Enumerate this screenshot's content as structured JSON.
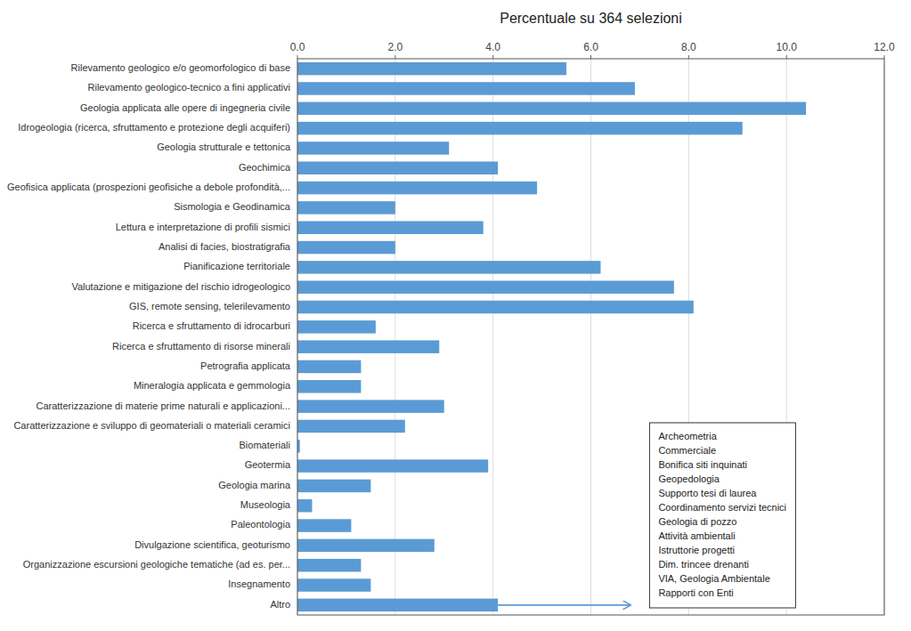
{
  "chart_data": {
    "type": "bar",
    "orientation": "horizontal",
    "title": "Percentuale su 364 selezioni",
    "categories": [
      "Rilevamento geologico e/o geomorfologico di base",
      "Rilevamento geologico-tecnico a fini applicativi",
      "Geologia applicata alle opere di ingegneria civile",
      "Idrogeologia (ricerca, sfruttamento e protezione degli acquiferi)",
      "Geologia strutturale e tettonica",
      "Geochimica",
      "Geofisica applicata (prospezioni geofisiche a debole profondità,...",
      "Sismologia e Geodinamica",
      "Lettura e interpretazione di profili sismici",
      "Analisi di facies, biostratigrafia",
      "Pianificazione territoriale",
      "Valutazione e mitigazione del rischio idrogeologico",
      "GIS, remote sensing, telerilevamento",
      "Ricerca e sfruttamento di idrocarburi",
      "Ricerca e sfruttamento di risorse minerali",
      "Petrografia applicata",
      "Mineralogia applicata e gemmologia",
      "Caratterizzazione di materie prime naturali e applicazioni...",
      "Caratterizzazione e sviluppo di geomateriali o materiali ceramici",
      "Biomateriali",
      "Geotermia",
      "Geologia marina",
      "Museologia",
      "Paleontologia",
      "Divulgazione scientifica, geoturismo",
      "Organizzazione escursioni geologiche tematiche (ad es. per...",
      "Insegnamento",
      "Altro"
    ],
    "values": [
      5.5,
      6.9,
      10.4,
      9.1,
      3.1,
      4.1,
      4.9,
      2.0,
      3.8,
      2.0,
      6.2,
      7.7,
      8.1,
      1.6,
      2.9,
      1.3,
      1.3,
      3.0,
      2.2,
      0.05,
      3.9,
      1.5,
      0.3,
      1.1,
      2.8,
      1.3,
      1.5,
      4.1
    ],
    "color": "#5B9BD5",
    "xlim": [
      0,
      12.0
    ],
    "xticks": [
      {
        "value": 0.0,
        "label": "0.0"
      },
      {
        "value": 2.0,
        "label": "2.0"
      },
      {
        "value": 4.0,
        "label": "4.0"
      },
      {
        "value": 6.0,
        "label": "6.0"
      },
      {
        "value": 8.0,
        "label": "8.0"
      },
      {
        "value": 10.0,
        "label": "10.0"
      },
      {
        "value": 12.0,
        "label": "12.0"
      }
    ],
    "grid": true,
    "annotations": [
      "Archeometria",
      "Commerciale",
      "Bonifica siti inquinati",
      "Geopedologia",
      "Supporto tesi di laurea",
      "Coordinamento servizi tecnici",
      "Geologia di pozzo",
      "Attività ambientali",
      "Istruttorie progetti",
      "Dim. trincee drenanti",
      "VIA, Geologia Ambientale",
      "Rapporti con Enti"
    ],
    "arrow": {
      "start": 4.1,
      "end": 6.8
    }
  }
}
